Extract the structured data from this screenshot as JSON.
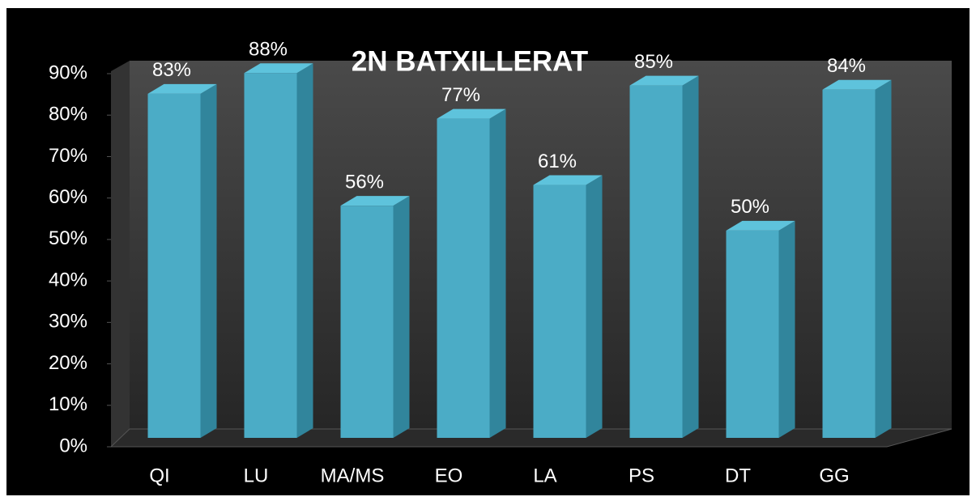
{
  "chart_data": {
    "type": "bar3d",
    "title": "2N BATXILLERAT",
    "categories": [
      "QI",
      "LU",
      "MA/MS",
      "EO",
      "LA",
      "PS",
      "DT",
      "GG"
    ],
    "values": [
      83,
      88,
      56,
      77,
      61,
      85,
      50,
      84
    ],
    "value_labels": [
      "83%",
      "88%",
      "56%",
      "77%",
      "61%",
      "85%",
      "50%",
      "84%"
    ],
    "color": "#4bacc6",
    "ylim": [
      0,
      90
    ],
    "yticks": [
      {
        "value": 0,
        "label": "0%"
      },
      {
        "value": 10,
        "label": "10%"
      },
      {
        "value": 20,
        "label": "20%"
      },
      {
        "value": 30,
        "label": "30%"
      },
      {
        "value": 40,
        "label": "40%"
      },
      {
        "value": 50,
        "label": "50%"
      },
      {
        "value": 60,
        "label": "60%"
      },
      {
        "value": 70,
        "label": "70%"
      },
      {
        "value": 80,
        "label": "80%"
      },
      {
        "value": 90,
        "label": "90%"
      }
    ]
  }
}
